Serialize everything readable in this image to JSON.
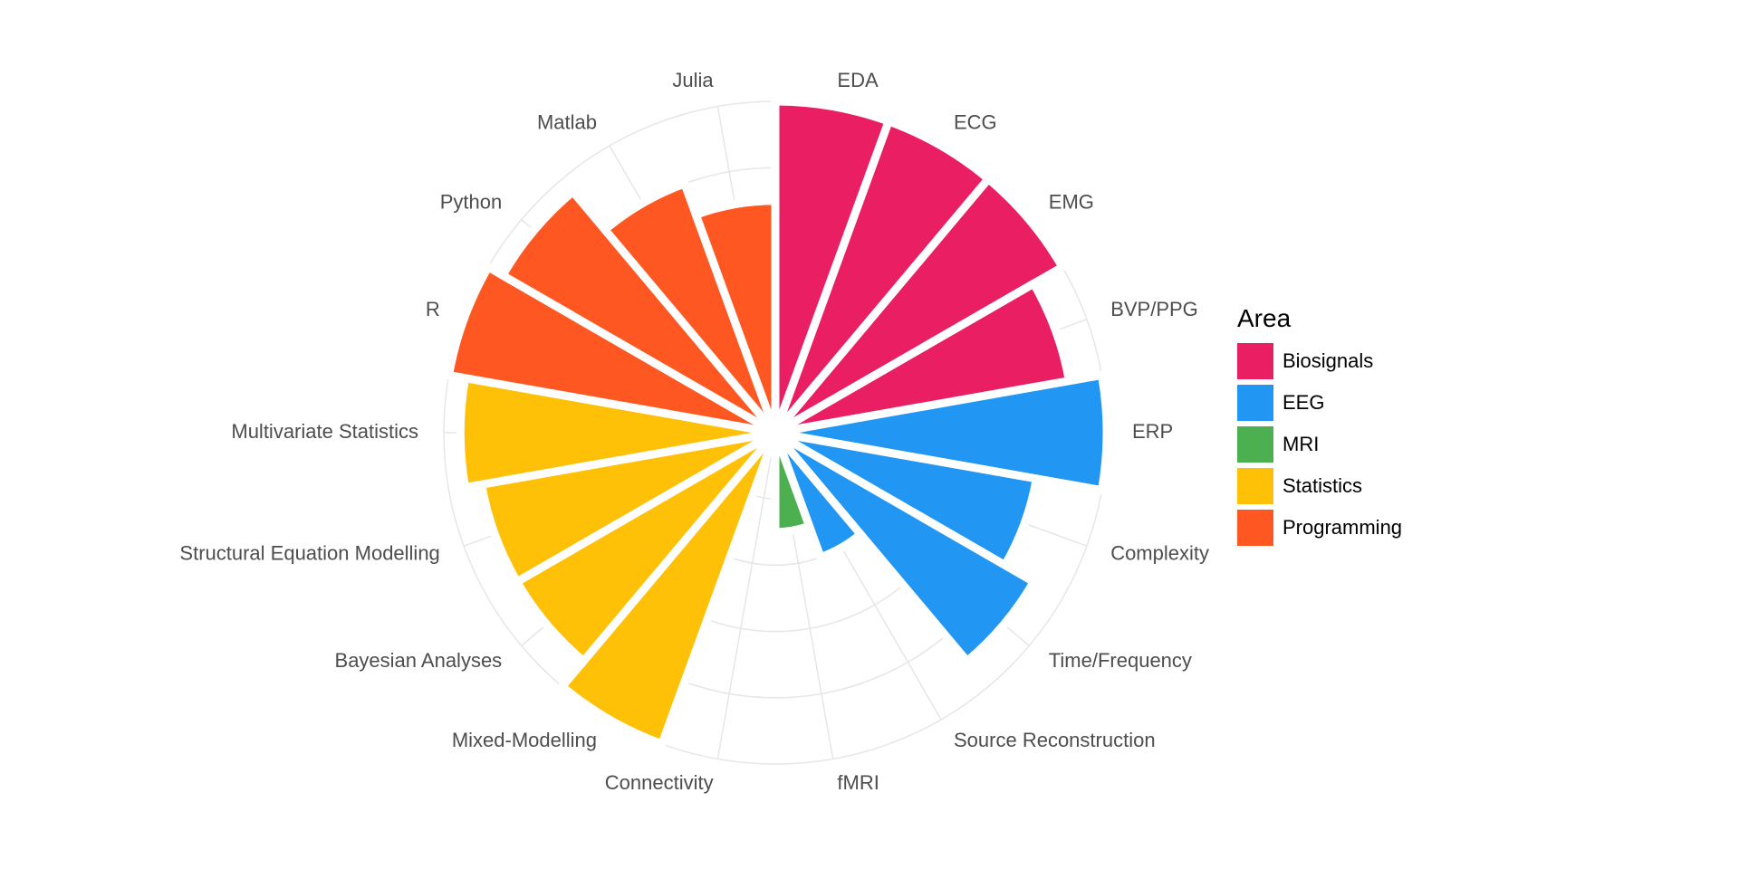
{
  "chart_data": {
    "type": "bar",
    "coordinates": "polar",
    "grid": true,
    "legend_position": "right",
    "legend_title": "Area",
    "ylim": [
      0,
      5
    ],
    "categories": [
      "EDA",
      "ECG",
      "EMG",
      "BVP/PPG",
      "ERP",
      "Complexity",
      "Time/Frequency",
      "Source Reconstruction",
      "fMRI",
      "Connectivity",
      "Mixed-Modelling",
      "Bayesian Analyses",
      "Structural Equation Modelling",
      "Multivariate Statistics",
      "R",
      "Python",
      "Matlab",
      "Julia"
    ],
    "values": [
      5,
      5,
      5,
      4.5,
      5,
      4,
      4.5,
      2,
      1.5,
      0.3,
      5,
      4.5,
      4.5,
      4.75,
      5,
      4.75,
      4,
      3.5
    ],
    "category_area": [
      "Biosignals",
      "Biosignals",
      "Biosignals",
      "Biosignals",
      "EEG",
      "EEG",
      "EEG",
      "EEG",
      "MRI",
      "MRI",
      "Statistics",
      "Statistics",
      "Statistics",
      "Statistics",
      "Programming",
      "Programming",
      "Programming",
      "Programming"
    ],
    "series": [
      {
        "name": "Biosignals",
        "color": "#E91E63"
      },
      {
        "name": "EEG",
        "color": "#2196F3"
      },
      {
        "name": "MRI",
        "color": "#4CAF50"
      },
      {
        "name": "Statistics",
        "color": "#FFC107"
      },
      {
        "name": "Programming",
        "color": "#FF5722"
      }
    ]
  }
}
